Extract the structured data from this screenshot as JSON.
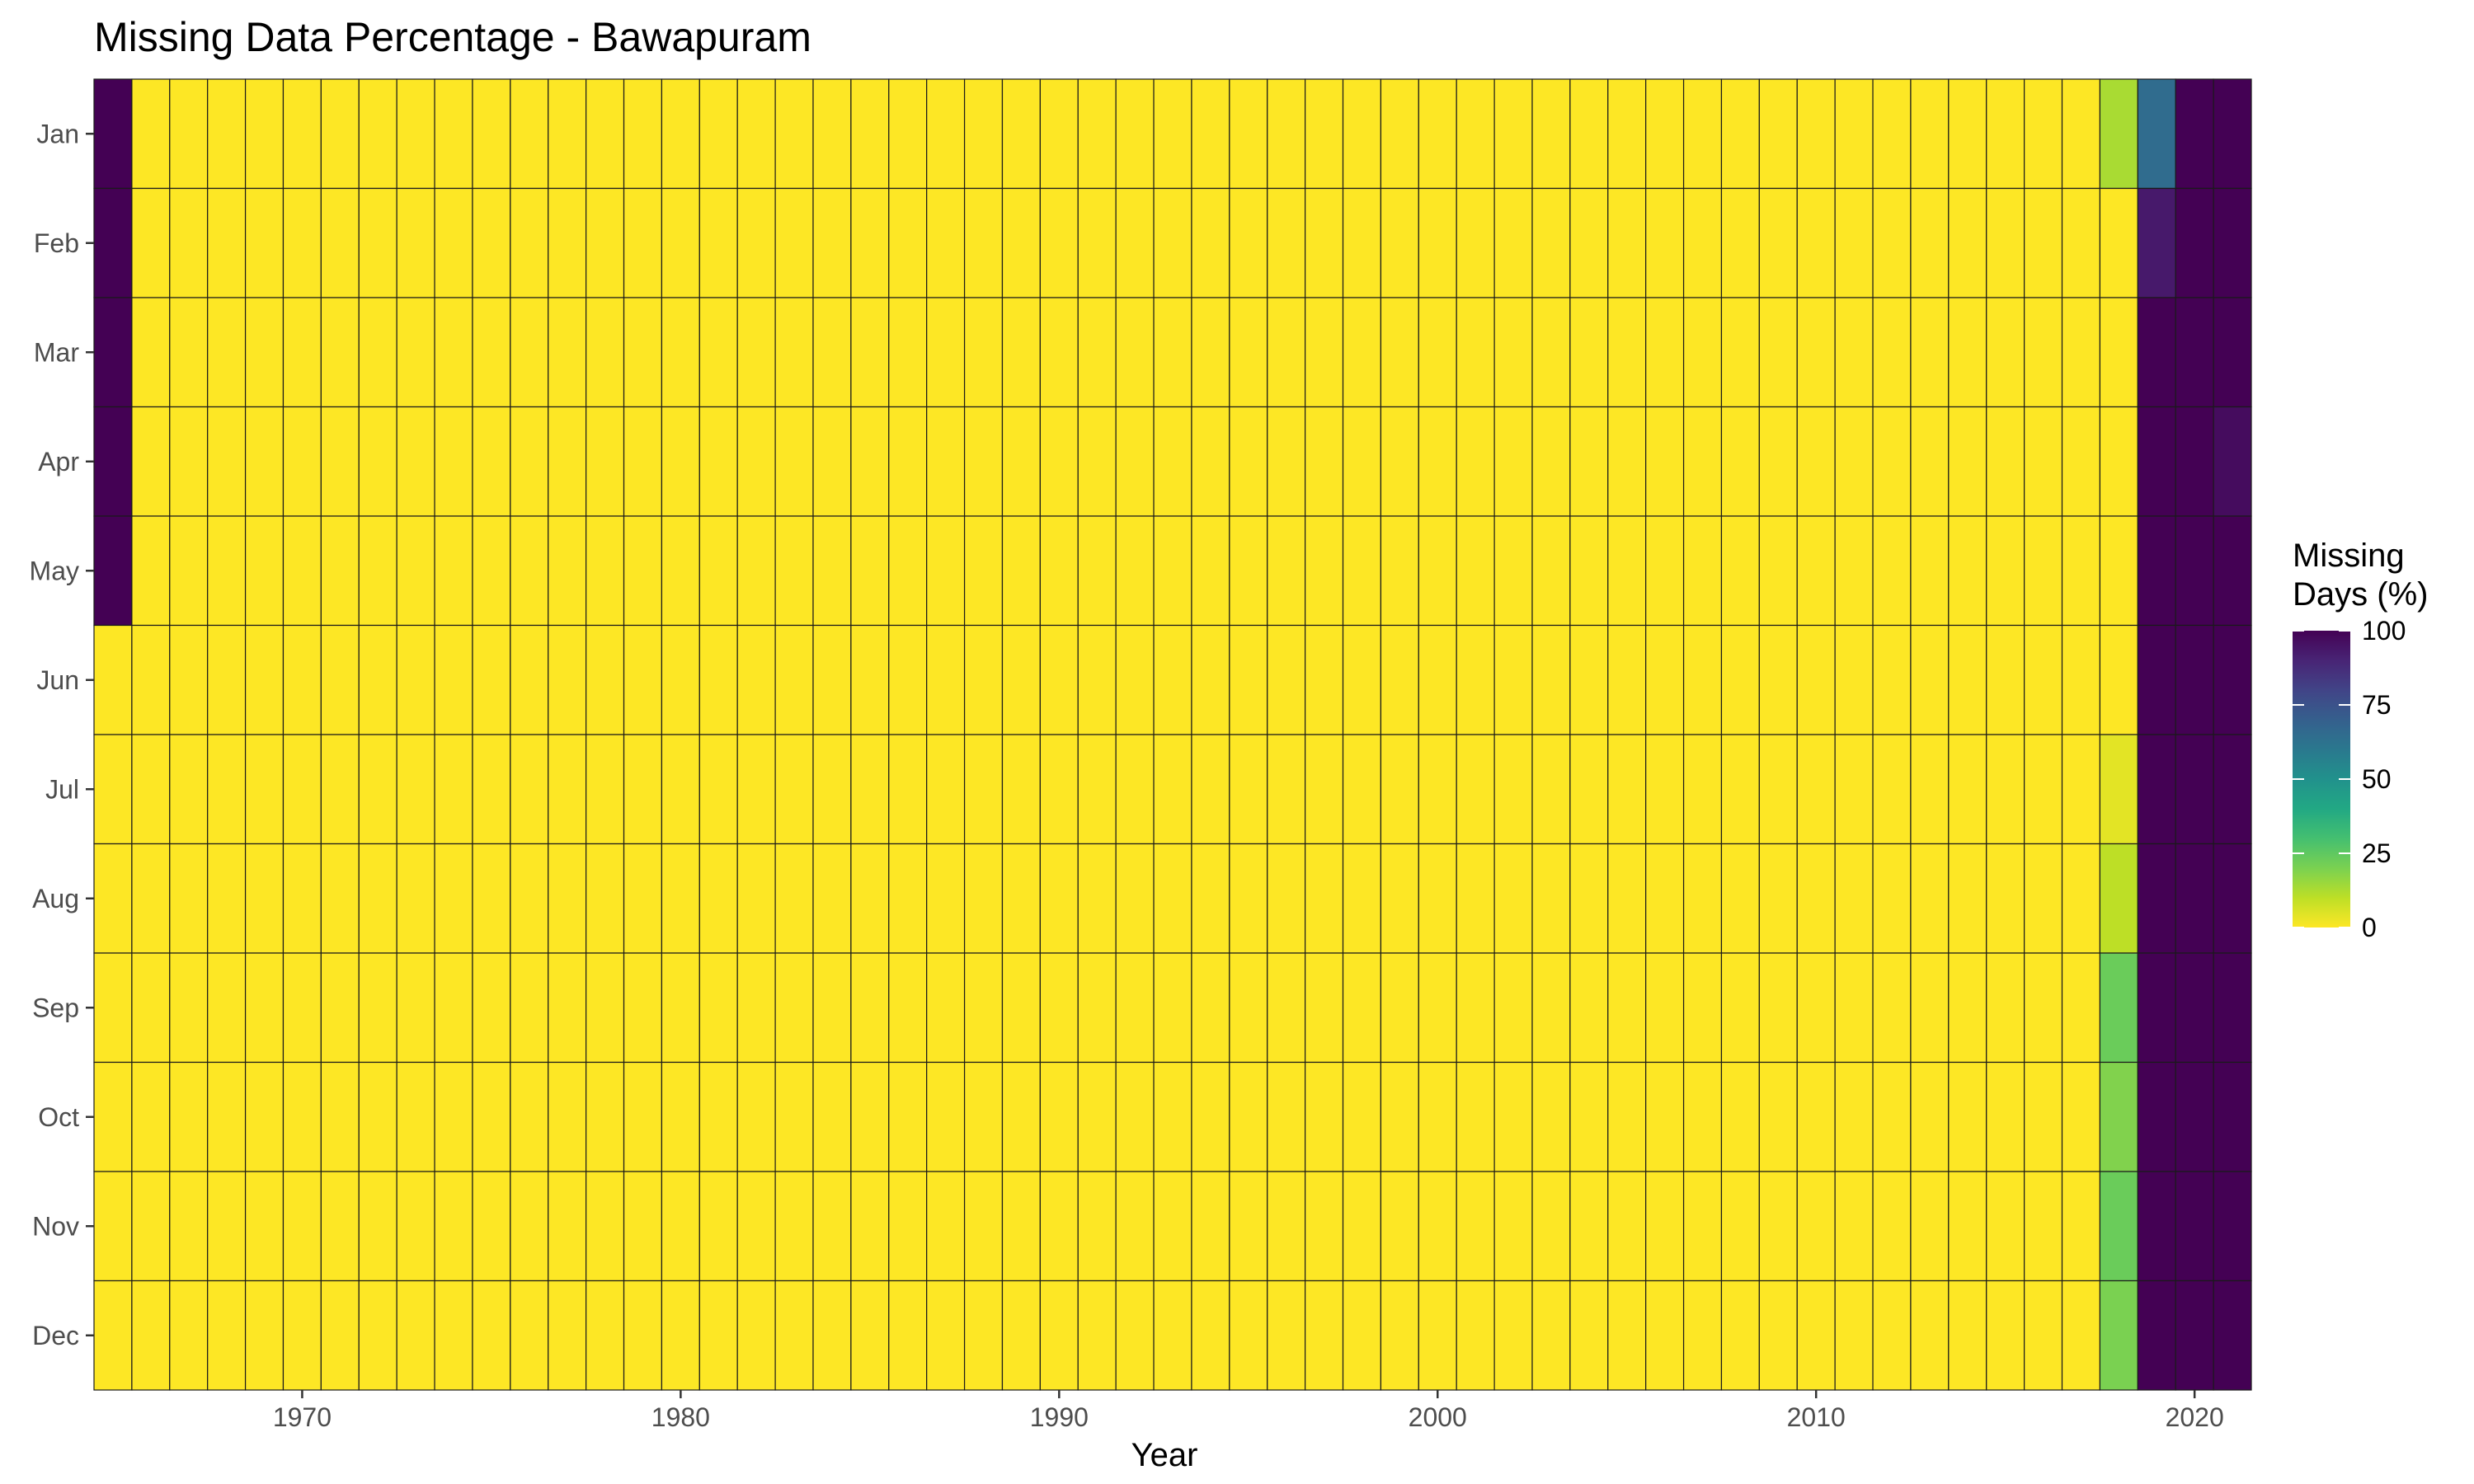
{
  "chart_data": {
    "type": "heatmap",
    "title": "Missing Data Percentage - Bawapuram",
    "xlabel": "Year",
    "ylabel": "",
    "x_ticks": [
      1970,
      1980,
      1990,
      2000,
      2010,
      2020
    ],
    "year_range": [
      1965,
      2021
    ],
    "months": [
      "Jan",
      "Feb",
      "Mar",
      "Apr",
      "May",
      "Jun",
      "Jul",
      "Aug",
      "Sep",
      "Oct",
      "Nov",
      "Dec"
    ],
    "default_value": 0,
    "nonzero_cells": [
      {
        "year": 1965,
        "month": "Jan",
        "value": 100
      },
      {
        "year": 1965,
        "month": "Feb",
        "value": 100
      },
      {
        "year": 1965,
        "month": "Mar",
        "value": 100
      },
      {
        "year": 1965,
        "month": "Apr",
        "value": 100
      },
      {
        "year": 1965,
        "month": "May",
        "value": 100
      },
      {
        "year": 2018,
        "month": "Jan",
        "value": 13
      },
      {
        "year": 2018,
        "month": "Jul",
        "value": 4
      },
      {
        "year": 2018,
        "month": "Aug",
        "value": 10
      },
      {
        "year": 2018,
        "month": "Sep",
        "value": 23
      },
      {
        "year": 2018,
        "month": "Oct",
        "value": 19
      },
      {
        "year": 2018,
        "month": "Nov",
        "value": 23
      },
      {
        "year": 2018,
        "month": "Dec",
        "value": 20
      },
      {
        "year": 2019,
        "month": "Jan",
        "value": 65
      },
      {
        "year": 2019,
        "month": "Feb",
        "value": 93
      },
      {
        "year": 2019,
        "month": "Mar",
        "value": 100
      },
      {
        "year": 2019,
        "month": "Apr",
        "value": 100
      },
      {
        "year": 2019,
        "month": "May",
        "value": 100
      },
      {
        "year": 2019,
        "month": "Jun",
        "value": 100
      },
      {
        "year": 2019,
        "month": "Jul",
        "value": 100
      },
      {
        "year": 2019,
        "month": "Aug",
        "value": 100
      },
      {
        "year": 2019,
        "month": "Sep",
        "value": 100
      },
      {
        "year": 2019,
        "month": "Oct",
        "value": 100
      },
      {
        "year": 2019,
        "month": "Nov",
        "value": 100
      },
      {
        "year": 2019,
        "month": "Dec",
        "value": 100
      },
      {
        "year": 2020,
        "month": "Jan",
        "value": 100
      },
      {
        "year": 2020,
        "month": "Feb",
        "value": 100
      },
      {
        "year": 2020,
        "month": "Mar",
        "value": 100
      },
      {
        "year": 2020,
        "month": "Apr",
        "value": 100
      },
      {
        "year": 2020,
        "month": "May",
        "value": 100
      },
      {
        "year": 2020,
        "month": "Jun",
        "value": 100
      },
      {
        "year": 2020,
        "month": "Jul",
        "value": 100
      },
      {
        "year": 2020,
        "month": "Aug",
        "value": 100
      },
      {
        "year": 2020,
        "month": "Sep",
        "value": 100
      },
      {
        "year": 2020,
        "month": "Oct",
        "value": 100
      },
      {
        "year": 2020,
        "month": "Nov",
        "value": 100
      },
      {
        "year": 2020,
        "month": "Dec",
        "value": 100
      },
      {
        "year": 2021,
        "month": "Jan",
        "value": 100
      },
      {
        "year": 2021,
        "month": "Feb",
        "value": 100
      },
      {
        "year": 2021,
        "month": "Mar",
        "value": 100
      },
      {
        "year": 2021,
        "month": "Apr",
        "value": 97
      },
      {
        "year": 2021,
        "month": "May",
        "value": 100
      },
      {
        "year": 2021,
        "month": "Jun",
        "value": 100
      },
      {
        "year": 2021,
        "month": "Jul",
        "value": 100
      },
      {
        "year": 2021,
        "month": "Aug",
        "value": 100
      },
      {
        "year": 2021,
        "month": "Sep",
        "value": 100
      },
      {
        "year": 2021,
        "month": "Oct",
        "value": 100
      },
      {
        "year": 2021,
        "month": "Nov",
        "value": 100
      },
      {
        "year": 2021,
        "month": "Dec",
        "value": 100
      }
    ],
    "color_scale": {
      "name": "viridis",
      "reversed": true,
      "range": [
        0,
        100
      ]
    },
    "legend": {
      "title_line1": "Missing",
      "title_line2": "Days (%)",
      "ticks": [
        100,
        75,
        50,
        25,
        0
      ],
      "placement": "right"
    },
    "grid": false,
    "cell_border_color": "#1a1a1a"
  }
}
